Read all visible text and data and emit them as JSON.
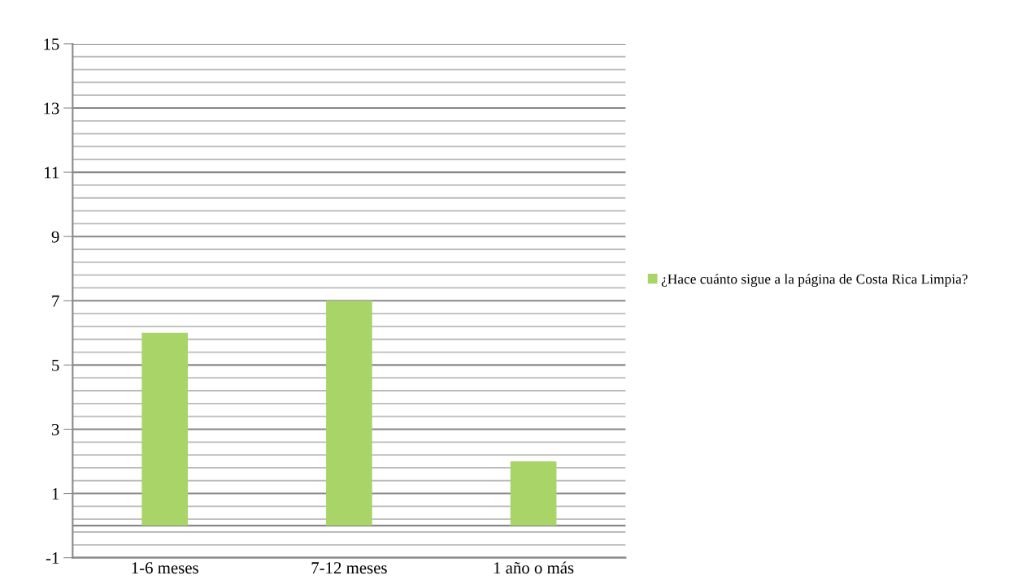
{
  "chart_data": {
    "type": "bar",
    "categories": [
      "1-6 meses",
      "7-12 meses",
      "1 año o más"
    ],
    "series": [
      {
        "name": "¿Hace cuánto sigue a la página de Costa Rica Limpia?",
        "color": "#a8d468",
        "values": [
          6,
          7,
          2
        ]
      }
    ],
    "ylim": [
      -1,
      15
    ],
    "yticks": [
      -1,
      1,
      3,
      5,
      7,
      9,
      11,
      13,
      15
    ],
    "grid": "y",
    "legend": "right"
  }
}
